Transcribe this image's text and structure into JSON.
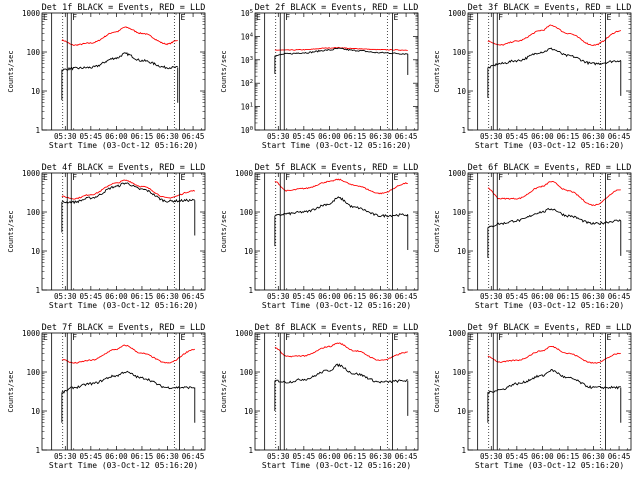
{
  "common": {
    "xlabel": "Start Time (03-Oct-12 05:16:20)",
    "ylabel": "Counts/sec",
    "x_tick_labels": [
      "05:30",
      "05:45",
      "06:00",
      "06:15",
      "06:30",
      "06:45"
    ],
    "flag_letters": [
      "E",
      "F",
      "E"
    ],
    "colors": {
      "events": "#000000",
      "lld": "#ff0000"
    }
  },
  "chart_data": [
    {
      "type": "line",
      "title": "Det 1f BLACK = Events, RED = LLD",
      "yscale": "log",
      "ylim": [
        1,
        1000
      ],
      "y_tick_labels": [
        "1",
        "10",
        "100",
        "1000"
      ],
      "x": [
        "05:28",
        "05:35",
        "05:45",
        "06:00",
        "06:05",
        "06:15",
        "06:30",
        "06:36"
      ],
      "series": [
        {
          "name": "LLD",
          "values": [
            200,
            150,
            170,
            330,
            430,
            300,
            160,
            200
          ]
        },
        {
          "name": "Events",
          "values": [
            35,
            38,
            40,
            70,
            90,
            60,
            40,
            40
          ]
        }
      ]
    },
    {
      "type": "line",
      "title": "Det 2f BLACK = Events, RED = LLD",
      "yscale": "log",
      "ylim": [
        1,
        100000
      ],
      "y_tick_labels": [
        "10^0",
        "10^1",
        "10^2",
        "10^3",
        "10^4",
        "10^5"
      ],
      "x": [
        "05:28",
        "05:35",
        "05:45",
        "06:00",
        "06:05",
        "06:15",
        "06:30",
        "06:46"
      ],
      "series": [
        {
          "name": "LLD",
          "values": [
            2600,
            2600,
            2700,
            3200,
            3300,
            3000,
            2700,
            2600
          ]
        },
        {
          "name": "Events",
          "values": [
            1500,
            1800,
            2000,
            2600,
            3000,
            2500,
            2000,
            1800
          ]
        }
      ]
    },
    {
      "type": "line",
      "title": "Det 3f BLACK = Events, RED = LLD",
      "yscale": "log",
      "ylim": [
        1,
        1000
      ],
      "y_tick_labels": [
        "1",
        "10",
        "100",
        "1000"
      ],
      "x": [
        "05:28",
        "05:35",
        "05:45",
        "06:00",
        "06:05",
        "06:15",
        "06:30",
        "06:46"
      ],
      "series": [
        {
          "name": "LLD",
          "values": [
            190,
            150,
            190,
            360,
            480,
            300,
            150,
            350
          ]
        },
        {
          "name": "Events",
          "values": [
            40,
            50,
            60,
            100,
            120,
            80,
            50,
            60
          ]
        }
      ]
    },
    {
      "type": "line",
      "title": "Det 4f BLACK = Events, RED = LLD",
      "yscale": "log",
      "ylim": [
        1,
        1000
      ],
      "y_tick_labels": [
        "1",
        "10",
        "100",
        "1000"
      ],
      "x": [
        "05:28",
        "05:35",
        "05:45",
        "06:00",
        "06:05",
        "06:15",
        "06:30",
        "06:46"
      ],
      "series": [
        {
          "name": "LLD",
          "values": [
            250,
            220,
            280,
            550,
            650,
            450,
            230,
            350
          ]
        },
        {
          "name": "Events",
          "values": [
            180,
            180,
            230,
            450,
            550,
            380,
            190,
            200
          ]
        }
      ]
    },
    {
      "type": "line",
      "title": "Det 5f BLACK = Events, RED = LLD",
      "yscale": "log",
      "ylim": [
        1,
        1000
      ],
      "y_tick_labels": [
        "1",
        "10",
        "100",
        "1000"
      ],
      "x": [
        "05:28",
        "05:35",
        "05:45",
        "06:00",
        "06:05",
        "06:15",
        "06:30",
        "06:46"
      ],
      "series": [
        {
          "name": "LLD",
          "values": [
            600,
            350,
            400,
            600,
            680,
            480,
            300,
            550
          ]
        },
        {
          "name": "Events",
          "values": [
            80,
            90,
            100,
            160,
            230,
            130,
            80,
            85
          ]
        }
      ]
    },
    {
      "type": "line",
      "title": "Det 6f BLACK = Events, RED = LLD",
      "yscale": "log",
      "ylim": [
        1,
        1000
      ],
      "y_tick_labels": [
        "1",
        "10",
        "100",
        "1000"
      ],
      "x": [
        "05:28",
        "05:35",
        "05:45",
        "06:00",
        "06:05",
        "06:15",
        "06:30",
        "06:46"
      ],
      "series": [
        {
          "name": "LLD",
          "values": [
            400,
            220,
            220,
            450,
            600,
            350,
            150,
            380
          ]
        },
        {
          "name": "Events",
          "values": [
            40,
            50,
            60,
            100,
            120,
            80,
            50,
            60
          ]
        }
      ]
    },
    {
      "type": "line",
      "title": "Det 7f BLACK = Events, RED = LLD",
      "yscale": "log",
      "ylim": [
        1,
        1000
      ],
      "y_tick_labels": [
        "1",
        "10",
        "100",
        "1000"
      ],
      "x": [
        "05:28",
        "05:35",
        "05:45",
        "06:00",
        "06:05",
        "06:15",
        "06:30",
        "06:46"
      ],
      "series": [
        {
          "name": "LLD",
          "values": [
            210,
            170,
            200,
            380,
            480,
            300,
            170,
            380
          ]
        },
        {
          "name": "Events",
          "values": [
            30,
            40,
            50,
            80,
            100,
            70,
            40,
            40
          ]
        }
      ]
    },
    {
      "type": "line",
      "title": "Det 8f BLACK = Events, RED = LLD",
      "yscale": "log",
      "ylim": [
        1,
        1000
      ],
      "y_tick_labels": [
        "1",
        "10",
        "100",
        "1000"
      ],
      "x": [
        "05:28",
        "05:35",
        "05:45",
        "06:00",
        "06:05",
        "06:15",
        "06:30",
        "06:46"
      ],
      "series": [
        {
          "name": "LLD",
          "values": [
            420,
            250,
            260,
            450,
            550,
            350,
            200,
            320
          ]
        },
        {
          "name": "Events",
          "values": [
            60,
            55,
            65,
            110,
            150,
            90,
            55,
            60
          ]
        }
      ]
    },
    {
      "type": "line",
      "title": "Det 9f BLACK = Events, RED = LLD",
      "yscale": "log",
      "ylim": [
        1,
        1000
      ],
      "y_tick_labels": [
        "1",
        "10",
        "100",
        "1000"
      ],
      "x": [
        "05:28",
        "05:35",
        "05:45",
        "06:00",
        "06:05",
        "06:15",
        "06:30",
        "06:46"
      ],
      "series": [
        {
          "name": "LLD",
          "values": [
            250,
            180,
            200,
            350,
            450,
            300,
            170,
            300
          ]
        },
        {
          "name": "Events",
          "values": [
            30,
            35,
            50,
            80,
            110,
            70,
            40,
            40
          ]
        }
      ]
    }
  ]
}
